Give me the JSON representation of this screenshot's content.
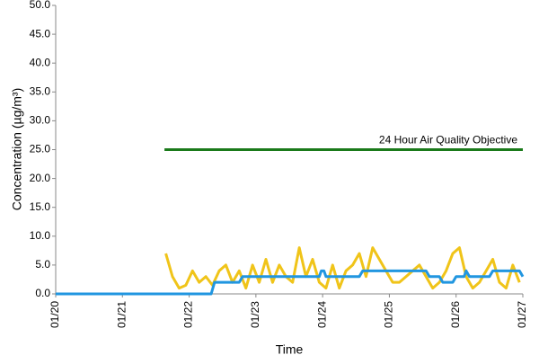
{
  "chart_data": {
    "type": "line",
    "ylabel": "Concentration (µg/m³)",
    "xlabel": "Time",
    "annotation": "24 Hour Air Quality Objective",
    "xlim": [
      0,
      7
    ],
    "xticks": [
      {
        "value": 0,
        "label": "01/20"
      },
      {
        "value": 1,
        "label": "01/21"
      },
      {
        "value": 2,
        "label": "01/22"
      },
      {
        "value": 3,
        "label": "01/23"
      },
      {
        "value": 4,
        "label": "01/24"
      },
      {
        "value": 5,
        "label": "01/25"
      },
      {
        "value": 6,
        "label": "01/26"
      },
      {
        "value": 7,
        "label": "01/27"
      }
    ],
    "ylim": [
      0,
      50
    ],
    "yticks": [
      {
        "value": 0,
        "label": "0.0"
      },
      {
        "value": 5,
        "label": "5.0"
      },
      {
        "value": 10,
        "label": "10.0"
      },
      {
        "value": 15,
        "label": "15.0"
      },
      {
        "value": 20,
        "label": "20.0"
      },
      {
        "value": 25,
        "label": "25.0"
      },
      {
        "value": 30,
        "label": "30.0"
      },
      {
        "value": 35,
        "label": "35.0"
      },
      {
        "value": 40,
        "label": "40.0"
      },
      {
        "value": 45,
        "label": "45.0"
      },
      {
        "value": 50,
        "label": "50.0"
      }
    ],
    "series": [
      {
        "color": "#1a7a1a",
        "x": [
          1.63,
          7
        ],
        "values": [
          25,
          25
        ]
      },
      {
        "color": "#f0c419",
        "x": [
          1.65,
          1.75,
          1.85,
          1.95,
          2.05,
          2.15,
          2.25,
          2.35,
          2.45,
          2.55,
          2.65,
          2.75,
          2.85,
          2.95,
          3.05,
          3.15,
          3.25,
          3.35,
          3.45,
          3.55,
          3.65,
          3.75,
          3.85,
          3.95,
          4.05,
          4.15,
          4.25,
          4.35,
          4.45,
          4.55,
          4.65,
          4.75,
          4.85,
          4.95,
          5.05,
          5.15,
          5.25,
          5.35,
          5.45,
          5.55,
          5.65,
          5.75,
          5.85,
          5.95,
          6.05,
          6.15,
          6.25,
          6.35,
          6.45,
          6.55,
          6.65,
          6.75,
          6.85,
          6.95
        ],
        "values": [
          7,
          3,
          1,
          1.5,
          4,
          2,
          3,
          1.5,
          4,
          5,
          2,
          4,
          1,
          5,
          2,
          6,
          2,
          5,
          3,
          2,
          8,
          3,
          6,
          2,
          1,
          5,
          1,
          4,
          5,
          7,
          3,
          8,
          6,
          4,
          2,
          2,
          3,
          4,
          5,
          3,
          1,
          2,
          4,
          7,
          8,
          3,
          1,
          2,
          4,
          6,
          2,
          1,
          5,
          2
        ]
      },
      {
        "color": "#2196e0",
        "x": [
          0,
          2.33,
          2.38,
          2.75,
          2.8,
          3.95,
          3.98,
          4.02,
          4.05,
          4.55,
          4.6,
          5.55,
          5.6,
          5.75,
          5.8,
          5.95,
          6.0,
          6.12,
          6.15,
          6.2,
          6.5,
          6.55,
          6.95,
          7.0
        ],
        "values": [
          0,
          0,
          2,
          2,
          3,
          3,
          4,
          4,
          3,
          3,
          4,
          4,
          3,
          3,
          2,
          2,
          3,
          3,
          4,
          3,
          3,
          4,
          4,
          3
        ]
      }
    ]
  }
}
